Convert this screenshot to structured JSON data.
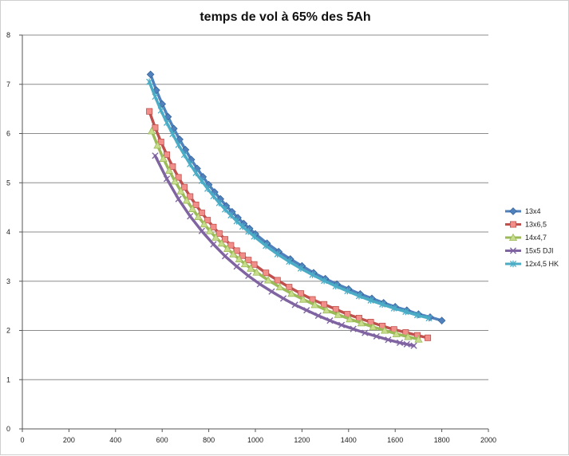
{
  "chart_data": {
    "type": "line",
    "title": "temps de vol à 65% des 5Ah",
    "xlabel": "",
    "ylabel": "",
    "xlim": [
      0,
      2000
    ],
    "ylim": [
      0,
      8
    ],
    "xticks": [
      0,
      200,
      400,
      600,
      800,
      1000,
      1200,
      1400,
      1600,
      1800,
      2000
    ],
    "yticks": [
      0,
      1,
      2,
      3,
      4,
      5,
      6,
      7,
      8
    ],
    "grid": "horizontal",
    "legend_position": "right",
    "series": [
      {
        "name": "13x4",
        "color": "#4f81bd",
        "marker": "diamond",
        "points": [
          [
            550,
            7.2
          ],
          [
            575,
            6.88
          ],
          [
            600,
            6.6
          ],
          [
            625,
            6.34
          ],
          [
            650,
            6.1
          ],
          [
            675,
            5.88
          ],
          [
            700,
            5.67
          ],
          [
            725,
            5.47
          ],
          [
            750,
            5.29
          ],
          [
            775,
            5.12
          ],
          [
            800,
            4.96
          ],
          [
            825,
            4.81
          ],
          [
            850,
            4.67
          ],
          [
            875,
            4.53
          ],
          [
            900,
            4.41
          ],
          [
            925,
            4.29
          ],
          [
            950,
            4.17
          ],
          [
            975,
            4.07
          ],
          [
            1000,
            3.96
          ],
          [
            1050,
            3.77
          ],
          [
            1100,
            3.6
          ],
          [
            1150,
            3.45
          ],
          [
            1200,
            3.31
          ],
          [
            1250,
            3.17
          ],
          [
            1300,
            3.05
          ],
          [
            1350,
            2.94
          ],
          [
            1400,
            2.84
          ],
          [
            1450,
            2.74
          ],
          [
            1500,
            2.65
          ],
          [
            1550,
            2.56
          ],
          [
            1600,
            2.48
          ],
          [
            1650,
            2.41
          ],
          [
            1700,
            2.33
          ],
          [
            1750,
            2.27
          ],
          [
            1800,
            2.2
          ]
        ]
      },
      {
        "name": "13x6,5",
        "color": "#c0504d",
        "marker": "square",
        "points": [
          [
            545,
            6.45
          ],
          [
            570,
            6.12
          ],
          [
            595,
            5.83
          ],
          [
            620,
            5.57
          ],
          [
            645,
            5.33
          ],
          [
            670,
            5.11
          ],
          [
            695,
            4.91
          ],
          [
            720,
            4.72
          ],
          [
            745,
            4.55
          ],
          [
            770,
            4.39
          ],
          [
            795,
            4.24
          ],
          [
            820,
            4.1
          ],
          [
            845,
            3.97
          ],
          [
            870,
            3.85
          ],
          [
            895,
            3.73
          ],
          [
            920,
            3.62
          ],
          [
            945,
            3.52
          ],
          [
            970,
            3.43
          ],
          [
            995,
            3.34
          ],
          [
            1045,
            3.17
          ],
          [
            1095,
            3.02
          ],
          [
            1145,
            2.88
          ],
          [
            1195,
            2.75
          ],
          [
            1245,
            2.63
          ],
          [
            1295,
            2.53
          ],
          [
            1345,
            2.43
          ],
          [
            1395,
            2.33
          ],
          [
            1445,
            2.25
          ],
          [
            1495,
            2.17
          ],
          [
            1545,
            2.09
          ],
          [
            1595,
            2.02
          ],
          [
            1645,
            1.96
          ],
          [
            1695,
            1.9
          ],
          [
            1740,
            1.85
          ]
        ]
      },
      {
        "name": "14x4,7",
        "color": "#9bbb59",
        "marker": "triangle",
        "points": [
          [
            555,
            6.05
          ],
          [
            580,
            5.76
          ],
          [
            605,
            5.49
          ],
          [
            630,
            5.25
          ],
          [
            655,
            5.03
          ],
          [
            680,
            4.83
          ],
          [
            705,
            4.64
          ],
          [
            730,
            4.47
          ],
          [
            755,
            4.31
          ],
          [
            780,
            4.16
          ],
          [
            805,
            4.02
          ],
          [
            830,
            3.89
          ],
          [
            855,
            3.77
          ],
          [
            880,
            3.66
          ],
          [
            905,
            3.55
          ],
          [
            930,
            3.45
          ],
          [
            955,
            3.35
          ],
          [
            980,
            3.26
          ],
          [
            1005,
            3.18
          ],
          [
            1055,
            3.02
          ],
          [
            1105,
            2.88
          ],
          [
            1155,
            2.75
          ],
          [
            1205,
            2.63
          ],
          [
            1255,
            2.52
          ],
          [
            1305,
            2.41
          ],
          [
            1355,
            2.32
          ],
          [
            1405,
            2.23
          ],
          [
            1455,
            2.15
          ],
          [
            1505,
            2.07
          ],
          [
            1555,
            2.0
          ],
          [
            1605,
            1.93
          ],
          [
            1655,
            1.87
          ],
          [
            1700,
            1.82
          ]
        ]
      },
      {
        "name": "15x5 DJI",
        "color": "#8064a2",
        "marker": "x",
        "points": [
          [
            570,
            5.55
          ],
          [
            620,
            5.08
          ],
          [
            670,
            4.67
          ],
          [
            720,
            4.32
          ],
          [
            770,
            4.02
          ],
          [
            820,
            3.75
          ],
          [
            870,
            3.51
          ],
          [
            920,
            3.3
          ],
          [
            970,
            3.11
          ],
          [
            1020,
            2.94
          ],
          [
            1070,
            2.79
          ],
          [
            1120,
            2.65
          ],
          [
            1170,
            2.52
          ],
          [
            1220,
            2.41
          ],
          [
            1270,
            2.3
          ],
          [
            1320,
            2.2
          ],
          [
            1370,
            2.11
          ],
          [
            1420,
            2.03
          ],
          [
            1470,
            1.95
          ],
          [
            1520,
            1.88
          ],
          [
            1570,
            1.81
          ],
          [
            1620,
            1.75
          ],
          [
            1650,
            1.72
          ],
          [
            1680,
            1.69
          ]
        ]
      },
      {
        "name": "12x4,5 HK",
        "color": "#4bacc6",
        "marker": "star",
        "points": [
          [
            545,
            7.05
          ],
          [
            570,
            6.75
          ],
          [
            595,
            6.47
          ],
          [
            620,
            6.22
          ],
          [
            645,
            5.99
          ],
          [
            670,
            5.77
          ],
          [
            695,
            5.57
          ],
          [
            720,
            5.38
          ],
          [
            745,
            5.2
          ],
          [
            770,
            5.04
          ],
          [
            795,
            4.88
          ],
          [
            820,
            4.73
          ],
          [
            845,
            4.59
          ],
          [
            870,
            4.46
          ],
          [
            895,
            4.34
          ],
          [
            920,
            4.22
          ],
          [
            945,
            4.11
          ],
          [
            970,
            4.01
          ],
          [
            995,
            3.91
          ],
          [
            1045,
            3.72
          ],
          [
            1095,
            3.55
          ],
          [
            1145,
            3.4
          ],
          [
            1195,
            3.26
          ],
          [
            1245,
            3.13
          ],
          [
            1295,
            3.01
          ],
          [
            1345,
            2.9
          ],
          [
            1395,
            2.8
          ],
          [
            1445,
            2.7
          ],
          [
            1495,
            2.61
          ],
          [
            1545,
            2.53
          ],
          [
            1595,
            2.45
          ],
          [
            1645,
            2.38
          ],
          [
            1695,
            2.31
          ],
          [
            1745,
            2.25
          ]
        ]
      }
    ]
  }
}
